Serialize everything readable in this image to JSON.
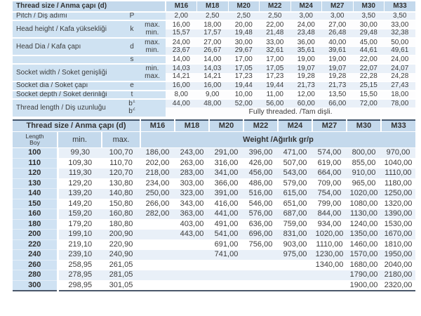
{
  "colors": {
    "header_blue": "#c4d9ec",
    "label_blue": "#cfe2f2",
    "band_blue": "#e9f0f8",
    "divider_dark": "#42556b"
  },
  "table1": {
    "header_label": "Thread size / Anma çapı (d)",
    "sizes": [
      "M16",
      "M18",
      "M20",
      "M22",
      "M24",
      "M27",
      "M30",
      "M33"
    ],
    "pitch": {
      "label": "Pitch / Diş adımı",
      "sym": "P",
      "values": [
        "2,00",
        "2,50",
        "2,50",
        "2,50",
        "3,00",
        "3,00",
        "3,50",
        "3,50"
      ]
    },
    "head_height": {
      "label": "Head height / Kafa yüksekliği",
      "sym": "k",
      "max_label": "max.",
      "min_label": "min.",
      "max": [
        "16,00",
        "18,00",
        "20,00",
        "22,00",
        "24,00",
        "27,00",
        "30,00",
        "33,00"
      ],
      "min": [
        "15,57",
        "17,57",
        "19,48",
        "21,48",
        "23,48",
        "26,48",
        "29,48",
        "32,38"
      ]
    },
    "head_dia": {
      "label": "Head Dia / Kafa çapı",
      "sym": "d",
      "max_label": "max.",
      "min_label": "min.",
      "max": [
        "24,00",
        "27,00",
        "30,00",
        "33,00",
        "36,00",
        "40,00",
        "45,00",
        "50,00"
      ],
      "min": [
        "23,67",
        "26,67",
        "29,67",
        "32,61",
        "35,61",
        "39,61",
        "44,61",
        "49,61"
      ]
    },
    "s_row": {
      "sym": "s",
      "values": [
        "14,00",
        "14,00",
        "17,00",
        "17,00",
        "19,00",
        "19,00",
        "22,00",
        "24,00"
      ]
    },
    "socket_width": {
      "label": "Socket width / Soket genişliği",
      "min_label": "min.",
      "max_label": "max.",
      "min": [
        "14,03",
        "14,03",
        "17,05",
        "17,05",
        "19,07",
        "19,07",
        "22,07",
        "24,07"
      ],
      "max": [
        "14,21",
        "14,21",
        "17,23",
        "17,23",
        "19,28",
        "19,28",
        "22,28",
        "24,28"
      ]
    },
    "socket_dia": {
      "label": "Socket dia / Soket çapı",
      "sym": "e",
      "values": [
        "16,00",
        "16,00",
        "19,44",
        "19,44",
        "21,73",
        "21,73",
        "25,15",
        "27,43"
      ]
    },
    "socket_depth": {
      "label": "Socket depth / Soket derinliği",
      "sym": "t",
      "values": [
        "8,00",
        "9,00",
        "10,00",
        "11,00",
        "12,00",
        "13,50",
        "15,50",
        "18,00"
      ]
    },
    "thread_length": {
      "label": "Thread length / Diş uzunluğu",
      "sym_base": "b",
      "sup_1": "1",
      "sup_2": "2",
      "b1": [
        "44,00",
        "48,00",
        "52,00",
        "56,00",
        "60,00",
        "66,00",
        "72,00",
        "78,00"
      ],
      "b2_text": "Fully threaded. /Tam dişli."
    }
  },
  "table2": {
    "header_label": "Thread size / Anma çapı (d)",
    "sizes": [
      "M16",
      "M18",
      "M20",
      "M22",
      "M24",
      "M27",
      "M30",
      "M33"
    ],
    "length_label_en": "Length",
    "length_label_tr": "Boy",
    "min_label": "min.",
    "max_label": "max.",
    "weight_label": "Weight /Ağırlık gr/p",
    "rows": [
      {
        "length": "100",
        "min": "99,30",
        "max": "100,70",
        "weights": [
          "186,00",
          "243,00",
          "291,00",
          "396,00",
          "471,00",
          "574,00",
          "800,00",
          "970,00"
        ]
      },
      {
        "length": "110",
        "min": "109,30",
        "max": "110,70",
        "weights": [
          "202,00",
          "263,00",
          "316,00",
          "426,00",
          "507,00",
          "619,00",
          "855,00",
          "1040,00"
        ]
      },
      {
        "length": "120",
        "min": "119,30",
        "max": "120,70",
        "weights": [
          "218,00",
          "283,00",
          "341,00",
          "456,00",
          "543,00",
          "664,00",
          "910,00",
          "1110,00"
        ]
      },
      {
        "length": "130",
        "min": "129,20",
        "max": "130,80",
        "weights": [
          "234,00",
          "303,00",
          "366,00",
          "486,00",
          "579,00",
          "709,00",
          "965,00",
          "1180,00"
        ]
      },
      {
        "length": "140",
        "min": "139,20",
        "max": "140,80",
        "weights": [
          "250,00",
          "323,00",
          "391,00",
          "516,00",
          "615,00",
          "754,00",
          "1020,00",
          "1250,00"
        ]
      },
      {
        "length": "150",
        "min": "149,20",
        "max": "150,80",
        "weights": [
          "266,00",
          "343,00",
          "416,00",
          "546,00",
          "651,00",
          "799,00",
          "1080,00",
          "1320,00"
        ]
      },
      {
        "length": "160",
        "min": "159,20",
        "max": "160,80",
        "weights": [
          "282,00",
          "363,00",
          "441,00",
          "576,00",
          "687,00",
          "844,00",
          "1130,00",
          "1390,00"
        ]
      },
      {
        "length": "180",
        "min": "179,20",
        "max": "180,80",
        "weights": [
          "",
          "403,00",
          "491,00",
          "636,00",
          "759,00",
          "934,00",
          "1240,00",
          "1530,00"
        ]
      },
      {
        "length": "200",
        "min": "199,10",
        "max": "200,90",
        "weights": [
          "",
          "443,00",
          "541,00",
          "696,00",
          "831,00",
          "1020,00",
          "1350,00",
          "1670,00"
        ]
      },
      {
        "length": "220",
        "min": "219,10",
        "max": "220,90",
        "weights": [
          "",
          "",
          "691,00",
          "756,00",
          "903,00",
          "1110,00",
          "1460,00",
          "1810,00"
        ]
      },
      {
        "length": "240",
        "min": "239,10",
        "max": "240,90",
        "weights": [
          "",
          "",
          "741,00",
          "",
          "975,00",
          "1230,00",
          "1570,00",
          "1950,00"
        ]
      },
      {
        "length": "260",
        "min": "258,95",
        "max": "261,05",
        "weights": [
          "",
          "",
          "",
          "",
          "",
          "1340,00",
          "1680,00",
          "2040,00"
        ]
      },
      {
        "length": "280",
        "min": "278,95",
        "max": "281,05",
        "weights": [
          "",
          "",
          "",
          "",
          "",
          "",
          "1790,00",
          "2180,00"
        ]
      },
      {
        "length": "300",
        "min": "298,95",
        "max": "301,05",
        "weights": [
          "",
          "",
          "",
          "",
          "",
          "",
          "1900,00",
          "2320,00"
        ]
      }
    ]
  }
}
